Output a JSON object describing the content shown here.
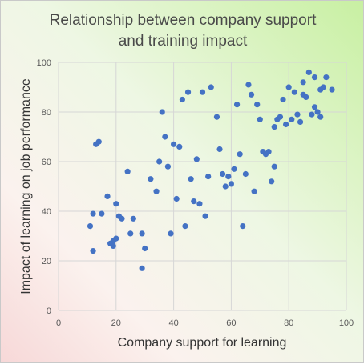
{
  "chart_data": {
    "type": "scatter",
    "title_lines": [
      "Relationship between company support",
      "and training impact"
    ],
    "xlabel": "Company support for learning",
    "ylabel": "Impact of learning on job performance",
    "xlim": [
      0,
      100
    ],
    "ylim": [
      0,
      100
    ],
    "x_ticks": [
      0,
      20,
      40,
      60,
      80,
      100
    ],
    "y_ticks": [
      0,
      20,
      40,
      60,
      80,
      100
    ],
    "grid": true,
    "legend": "none",
    "marker_color": "#4472c4",
    "points": [
      [
        11,
        34
      ],
      [
        12,
        39
      ],
      [
        12,
        24
      ],
      [
        13,
        67
      ],
      [
        14,
        68
      ],
      [
        15,
        39
      ],
      [
        17,
        46
      ],
      [
        18,
        27
      ],
      [
        19,
        28
      ],
      [
        19,
        26
      ],
      [
        20,
        43
      ],
      [
        20,
        29
      ],
      [
        21,
        38
      ],
      [
        22,
        37
      ],
      [
        24,
        56
      ],
      [
        25,
        31
      ],
      [
        26,
        37
      ],
      [
        29,
        31
      ],
      [
        29,
        17
      ],
      [
        30,
        25
      ],
      [
        32,
        53
      ],
      [
        34,
        48
      ],
      [
        35,
        60
      ],
      [
        36,
        80
      ],
      [
        37,
        70
      ],
      [
        38,
        58
      ],
      [
        39,
        31
      ],
      [
        40,
        67
      ],
      [
        41,
        45
      ],
      [
        42,
        66
      ],
      [
        43,
        85
      ],
      [
        44,
        34
      ],
      [
        45,
        88
      ],
      [
        46,
        53
      ],
      [
        47,
        44
      ],
      [
        48,
        61
      ],
      [
        49,
        43
      ],
      [
        50,
        88
      ],
      [
        51,
        38
      ],
      [
        52,
        54
      ],
      [
        53,
        90
      ],
      [
        55,
        78
      ],
      [
        56,
        65
      ],
      [
        57,
        55
      ],
      [
        58,
        50
      ],
      [
        59,
        54
      ],
      [
        60,
        51
      ],
      [
        61,
        57
      ],
      [
        62,
        83
      ],
      [
        63,
        63
      ],
      [
        64,
        34
      ],
      [
        65,
        55
      ],
      [
        66,
        91
      ],
      [
        67,
        87
      ],
      [
        68,
        48
      ],
      [
        69,
        83
      ],
      [
        70,
        77
      ],
      [
        71,
        64
      ],
      [
        72,
        63
      ],
      [
        73,
        64
      ],
      [
        74,
        52
      ],
      [
        75,
        58
      ],
      [
        75,
        74
      ],
      [
        76,
        77
      ],
      [
        77,
        78
      ],
      [
        78,
        85
      ],
      [
        79,
        75
      ],
      [
        80,
        90
      ],
      [
        81,
        77
      ],
      [
        82,
        88
      ],
      [
        83,
        79
      ],
      [
        84,
        76
      ],
      [
        85,
        92
      ],
      [
        85,
        87
      ],
      [
        86,
        86
      ],
      [
        87,
        96
      ],
      [
        88,
        79
      ],
      [
        89,
        82
      ],
      [
        89,
        94
      ],
      [
        90,
        80
      ],
      [
        91,
        89
      ],
      [
        91,
        78
      ],
      [
        92,
        90
      ],
      [
        93,
        94
      ],
      [
        95,
        89
      ]
    ]
  }
}
